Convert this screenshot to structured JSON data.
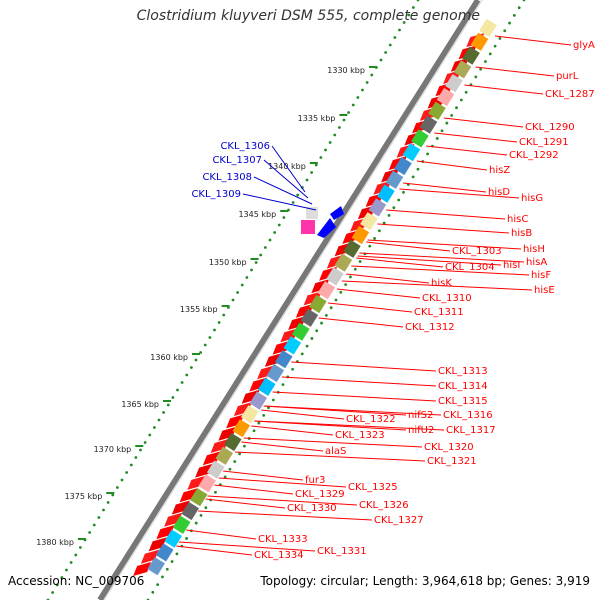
{
  "title": "Clostridium kluyveri DSM 555, complete genome",
  "accession": "Accession: NC_009706",
  "topology": "Topology: circular; Length: 3,964,618 bp; Genes: 3,919",
  "colors": {
    "forward_gene": "#ff0000",
    "label_red": "#ff0000",
    "label_blue": "#0000cc",
    "tick": "#228b22",
    "backbone": "#888888"
  },
  "kbp_ticks": [
    "1330 kbp",
    "1335 kbp",
    "1340 kbp",
    "1345 kbp",
    "1350 kbp",
    "1355 kbp",
    "1360 kbp",
    "1365 kbp",
    "1370 kbp",
    "1375 kbp",
    "1380 kbp"
  ],
  "blue_labels": [
    "CKL_1306",
    "CKL_1307",
    "CKL_1308",
    "CKL_1309"
  ],
  "red_labels": [
    "glyA",
    "purL",
    "CKL_1287",
    "CKL_1290",
    "CKL_1291",
    "CKL_1292",
    "hisZ",
    "hisD",
    "hisG",
    "hisC",
    "hisB",
    "hisH",
    "CKL_1303",
    "hisA",
    "CKL_1304",
    "hisI",
    "hisF",
    "hisK",
    "hisE",
    "CKL_1310",
    "CKL_1311",
    "CKL_1312",
    "CKL_1313",
    "CKL_1314",
    "CKL_1315",
    "nifS2",
    "CKL_1316",
    "CKL_1322",
    "nifU2",
    "CKL_1317",
    "CKL_1323",
    "CKL_1320",
    "alaS",
    "CKL_1321",
    "fur3",
    "CKL_1325",
    "CKL_1329",
    "CKL_1326",
    "CKL_1330",
    "CKL_1327",
    "CKL_1333",
    "CKL_1331",
    "CKL_1334"
  ]
}
